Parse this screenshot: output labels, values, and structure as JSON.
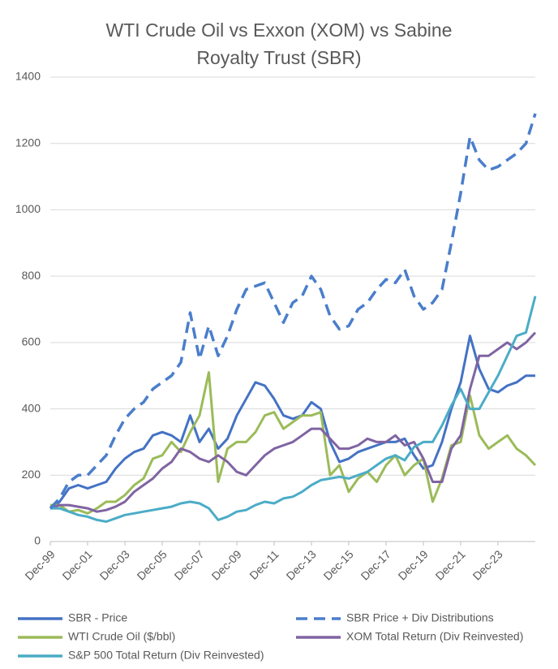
{
  "chart_data": {
    "type": "line",
    "title": "WTI Crude Oil vs Exxon (XOM) vs Sabine Royalty Trust (SBR)",
    "categories": [
      "Dec-99",
      null,
      null,
      null,
      "Dec-01",
      null,
      null,
      null,
      "Dec-03",
      null,
      null,
      null,
      "Dec-05",
      null,
      null,
      null,
      "Dec-07",
      null,
      null,
      null,
      "Dec-09",
      null,
      null,
      null,
      "Dec-11",
      null,
      null,
      null,
      "Dec-13",
      null,
      null,
      null,
      "Dec-15",
      null,
      null,
      null,
      "Dec-17",
      null,
      null,
      null,
      "Dec-19",
      null,
      null,
      null,
      "Dec-21",
      null,
      null,
      null,
      "Dec-23",
      null,
      null,
      null,
      null
    ],
    "series": [
      {
        "name": "SBR - Price",
        "color": "#4472c4",
        "dash": false,
        "values": [
          100,
          120,
          160,
          170,
          160,
          170,
          180,
          220,
          250,
          270,
          280,
          320,
          330,
          320,
          300,
          380,
          300,
          340,
          280,
          310,
          380,
          430,
          480,
          470,
          430,
          380,
          370,
          380,
          420,
          400,
          300,
          240,
          250,
          270,
          280,
          290,
          300,
          300,
          310,
          260,
          220,
          230,
          300,
          400,
          480,
          620,
          520,
          460,
          450,
          470,
          480,
          500,
          500
        ]
      },
      {
        "name": "SBR Price + Div Distributions",
        "color": "#4a7ecb",
        "dash": true,
        "values": [
          100,
          130,
          180,
          200,
          200,
          230,
          260,
          320,
          370,
          400,
          420,
          460,
          480,
          500,
          540,
          690,
          550,
          650,
          560,
          620,
          700,
          760,
          770,
          780,
          720,
          660,
          720,
          740,
          800,
          760,
          680,
          640,
          650,
          700,
          720,
          760,
          790,
          780,
          820,
          740,
          700,
          720,
          760,
          900,
          1050,
          1220,
          1150,
          1120,
          1130,
          1150,
          1170,
          1200,
          1290
        ]
      },
      {
        "name": "WTI Crude Oil ($/bbl)",
        "color": "#9bbb59",
        "dash": false,
        "values": [
          110,
          110,
          90,
          95,
          85,
          100,
          120,
          120,
          140,
          170,
          190,
          250,
          260,
          300,
          270,
          330,
          380,
          510,
          180,
          280,
          300,
          300,
          330,
          380,
          390,
          340,
          360,
          380,
          380,
          390,
          200,
          230,
          150,
          190,
          210,
          180,
          230,
          260,
          200,
          230,
          250,
          120,
          190,
          290,
          300,
          440,
          320,
          280,
          300,
          320,
          280,
          260,
          230
        ]
      },
      {
        "name": "XOM Total Return (Div Reinvested)",
        "color": "#8064a2",
        "dash": false,
        "values": [
          100,
          110,
          110,
          105,
          100,
          90,
          95,
          105,
          120,
          150,
          170,
          190,
          220,
          240,
          280,
          270,
          250,
          240,
          260,
          240,
          210,
          200,
          230,
          260,
          280,
          290,
          300,
          320,
          340,
          340,
          310,
          280,
          280,
          290,
          310,
          300,
          300,
          320,
          290,
          300,
          250,
          180,
          180,
          280,
          320,
          460,
          560,
          560,
          580,
          600,
          580,
          600,
          630
        ]
      },
      {
        "name": "S&P 500 Total Return (Div Reinvested)",
        "color": "#4bacc6",
        "dash": false,
        "values": [
          100,
          100,
          90,
          80,
          75,
          65,
          60,
          70,
          80,
          85,
          90,
          95,
          100,
          105,
          115,
          120,
          115,
          100,
          65,
          75,
          90,
          95,
          110,
          120,
          115,
          130,
          135,
          150,
          170,
          185,
          190,
          195,
          190,
          200,
          210,
          230,
          250,
          260,
          245,
          285,
          300,
          300,
          350,
          410,
          460,
          400,
          400,
          450,
          500,
          560,
          620,
          630,
          740
        ]
      }
    ],
    "ylim": [
      0,
      1400
    ],
    "yticks": [
      0,
      200,
      400,
      600,
      800,
      1000,
      1200,
      1400
    ],
    "grid": true,
    "legend": "bottom"
  }
}
